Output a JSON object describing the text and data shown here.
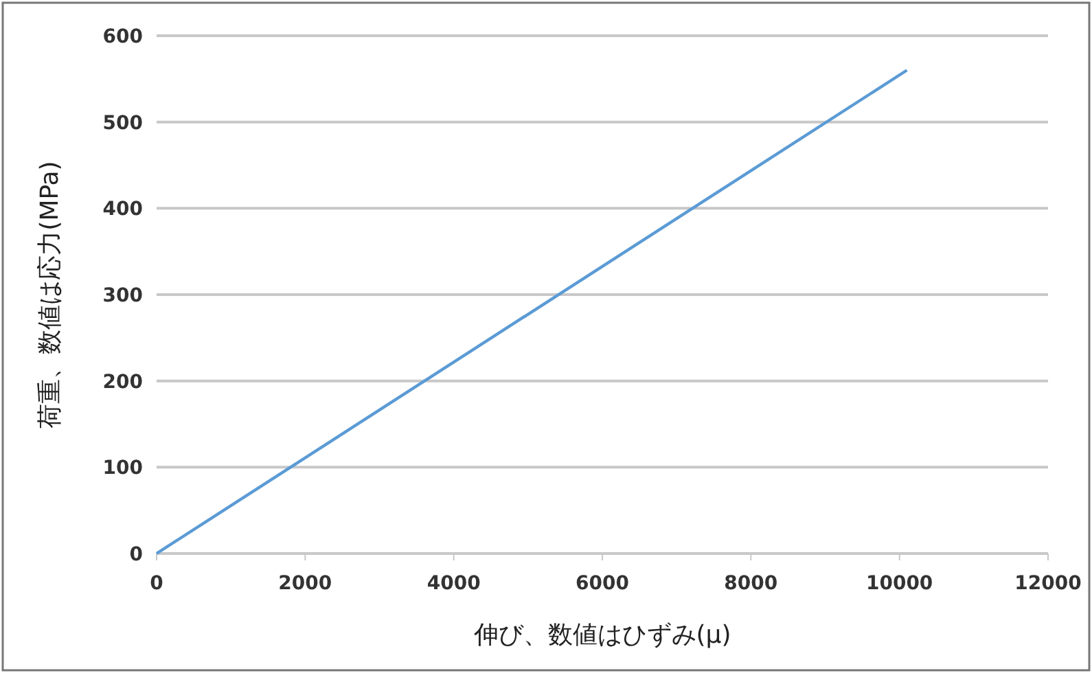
{
  "chart_data": {
    "type": "line",
    "xlabel": "伸び、数値はひずみ(μ)",
    "ylabel": "荷重、数値は応力(MPa)",
    "x": [
      0,
      10100
    ],
    "series": [
      {
        "color": "#5b9bd5",
        "values": [
          0,
          560
        ]
      }
    ],
    "xlim": [
      0,
      12000
    ],
    "xticks": [
      0,
      2000,
      4000,
      6000,
      8000,
      10000,
      12000
    ],
    "ylim": [
      0,
      600
    ],
    "yticks": [
      0,
      100,
      200,
      300,
      400,
      500,
      600
    ],
    "grid": "y",
    "marker": "none",
    "line_style": "solid"
  }
}
